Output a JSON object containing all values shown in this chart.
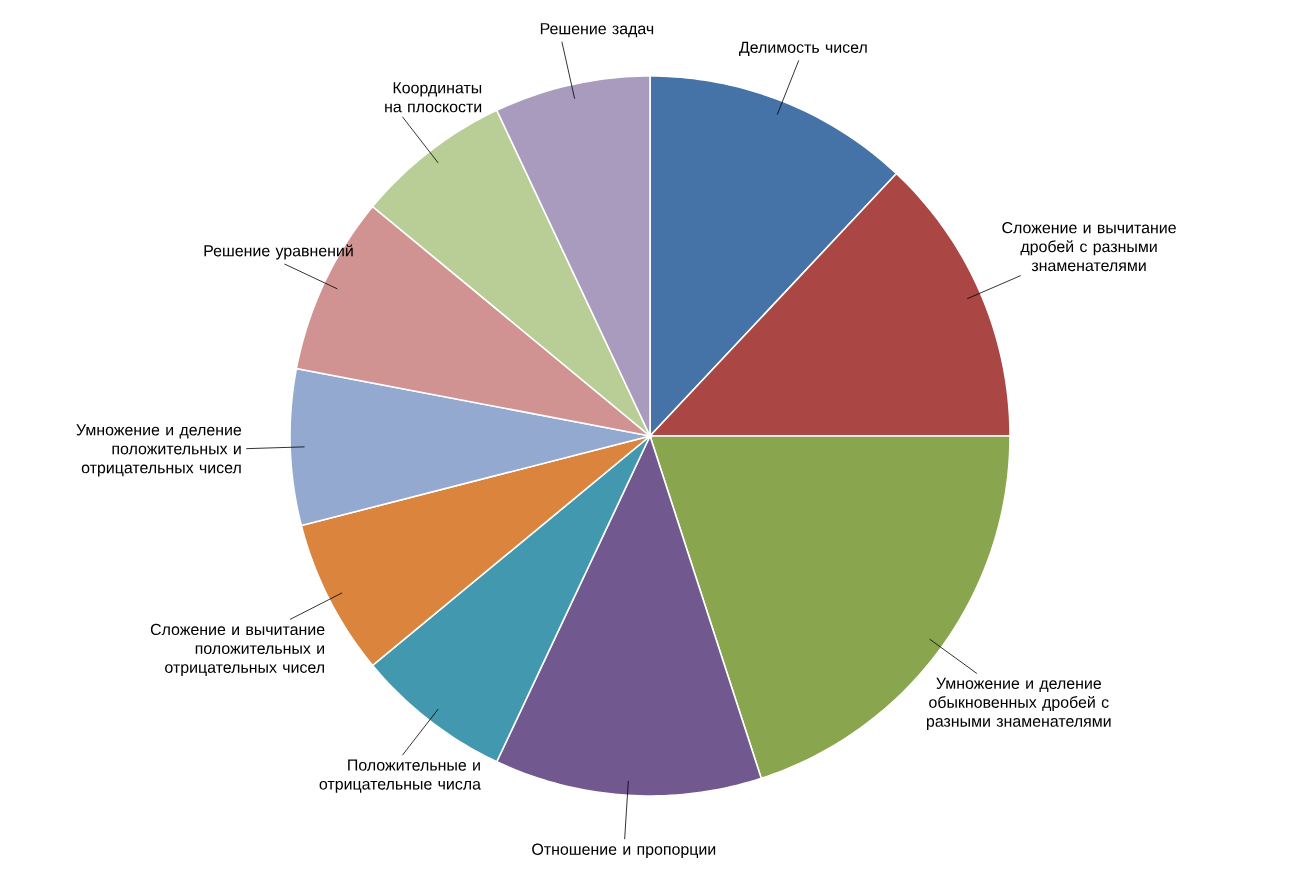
{
  "chart_data": {
    "type": "pie",
    "categories": [
      "Делимость чисел",
      "Сложение и вычитание дробей с разными знаменателями",
      "Умножение и деление обыкновенных дробей с разными знаменателями",
      "Отношение и пропорции",
      "Положительные и отрицательные числа",
      "Сложение и вычитание положительных и отрицательных чисел",
      "Умножение и деление положительных и отрицательных чисел",
      "Решение уравнений",
      "Координаты на плоскости",
      "Решение задач"
    ],
    "values": [
      12,
      13,
      20,
      12,
      7,
      7,
      7,
      8,
      7,
      7
    ],
    "colors": [
      "#4572a7",
      "#aa4643",
      "#89a54e",
      "#71588f",
      "#4198af",
      "#db843d",
      "#93a9cf",
      "#d19392",
      "#b9cd96",
      "#a99bbd"
    ]
  }
}
